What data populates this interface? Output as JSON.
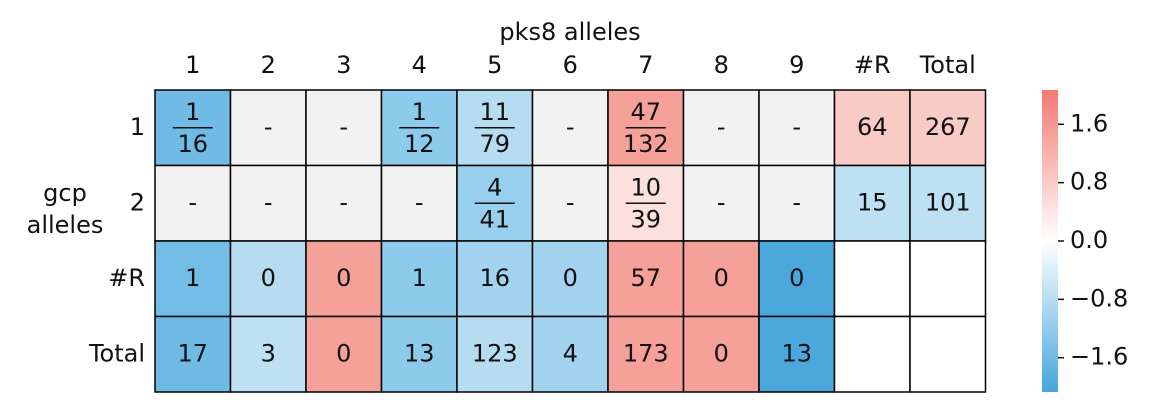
{
  "title": "pks8 alleles",
  "y_label": [
    "gcp",
    "alleles"
  ],
  "columns": [
    "1",
    "2",
    "3",
    "4",
    "5",
    "6",
    "7",
    "8",
    "9",
    "#R",
    "Total"
  ],
  "rows": [
    {
      "label": "1",
      "cells": [
        {
          "num": "1",
          "den": "16",
          "color": "#6fbbe6"
        },
        {
          "text": "-",
          "color": "#f2f2f2"
        },
        {
          "text": "-",
          "color": "#f2f2f2"
        },
        {
          "num": "1",
          "den": "12",
          "color": "#8ccbec"
        },
        {
          "num": "11",
          "den": "79",
          "color": "#b6dcf1"
        },
        {
          "text": "-",
          "color": "#f2f2f2"
        },
        {
          "num": "47",
          "den": "132",
          "color": "#f6a09a"
        },
        {
          "text": "-",
          "color": "#f2f2f2"
        },
        {
          "text": "-",
          "color": "#f2f2f2"
        },
        {
          "text": "64",
          "color": "#f9cbc7"
        },
        {
          "text": "267",
          "color": "#f9cbc7"
        }
      ]
    },
    {
      "label": "2",
      "cells": [
        {
          "text": "-",
          "color": "#f2f2f2"
        },
        {
          "text": "-",
          "color": "#f2f2f2"
        },
        {
          "text": "-",
          "color": "#f2f2f2"
        },
        {
          "text": "-",
          "color": "#f2f2f2"
        },
        {
          "num": "4",
          "den": "41",
          "color": "#99cfee"
        },
        {
          "text": "-",
          "color": "#f2f2f2"
        },
        {
          "num": "10",
          "den": "39",
          "color": "#fbe0de"
        },
        {
          "text": "-",
          "color": "#f2f2f2"
        },
        {
          "text": "-",
          "color": "#f2f2f2"
        },
        {
          "text": "15",
          "color": "#bde0f3"
        },
        {
          "text": "101",
          "color": "#bde0f3"
        }
      ]
    },
    {
      "label": "#R",
      "cells": [
        {
          "text": "1",
          "color": "#72bde6"
        },
        {
          "text": "0",
          "color": "#b6dcf1"
        },
        {
          "text": "0",
          "color": "#f6a09a"
        },
        {
          "text": "1",
          "color": "#8ccbec"
        },
        {
          "text": "16",
          "color": "#a2d3ef"
        },
        {
          "text": "0",
          "color": "#a2d3ef"
        },
        {
          "text": "57",
          "color": "#f6a09a"
        },
        {
          "text": "0",
          "color": "#f6a09a"
        },
        {
          "text": "0",
          "color": "#4aa8dc"
        },
        {
          "color": "#ffffff"
        },
        {
          "color": "#ffffff"
        }
      ]
    },
    {
      "label": "Total",
      "cells": [
        {
          "text": "17",
          "color": "#6fbbe6"
        },
        {
          "text": "3",
          "color": "#bde0f3"
        },
        {
          "text": "0",
          "color": "#f6a09a"
        },
        {
          "text": "13",
          "color": "#8ccbec"
        },
        {
          "text": "123",
          "color": "#b6dcf1"
        },
        {
          "text": "4",
          "color": "#a2d3ef"
        },
        {
          "text": "173",
          "color": "#f6a09a"
        },
        {
          "text": "0",
          "color": "#f6a09a"
        },
        {
          "text": "13",
          "color": "#4aa8dc"
        },
        {
          "color": "#ffffff"
        },
        {
          "color": "#ffffff"
        }
      ]
    }
  ],
  "colorbar": {
    "ylim": [
      -2.07,
      2.07
    ],
    "colors": [
      "#45a6dc",
      "#ffffff",
      "#f37a72"
    ],
    "ticks": [
      {
        "value": 1.6,
        "label": "1.6"
      },
      {
        "value": 0.8,
        "label": "0.8"
      },
      {
        "value": 0,
        "label": "0.0"
      },
      {
        "value": -0.8,
        "label": "−0.8"
      },
      {
        "value": -1.6,
        "label": "−1.6"
      }
    ]
  }
}
